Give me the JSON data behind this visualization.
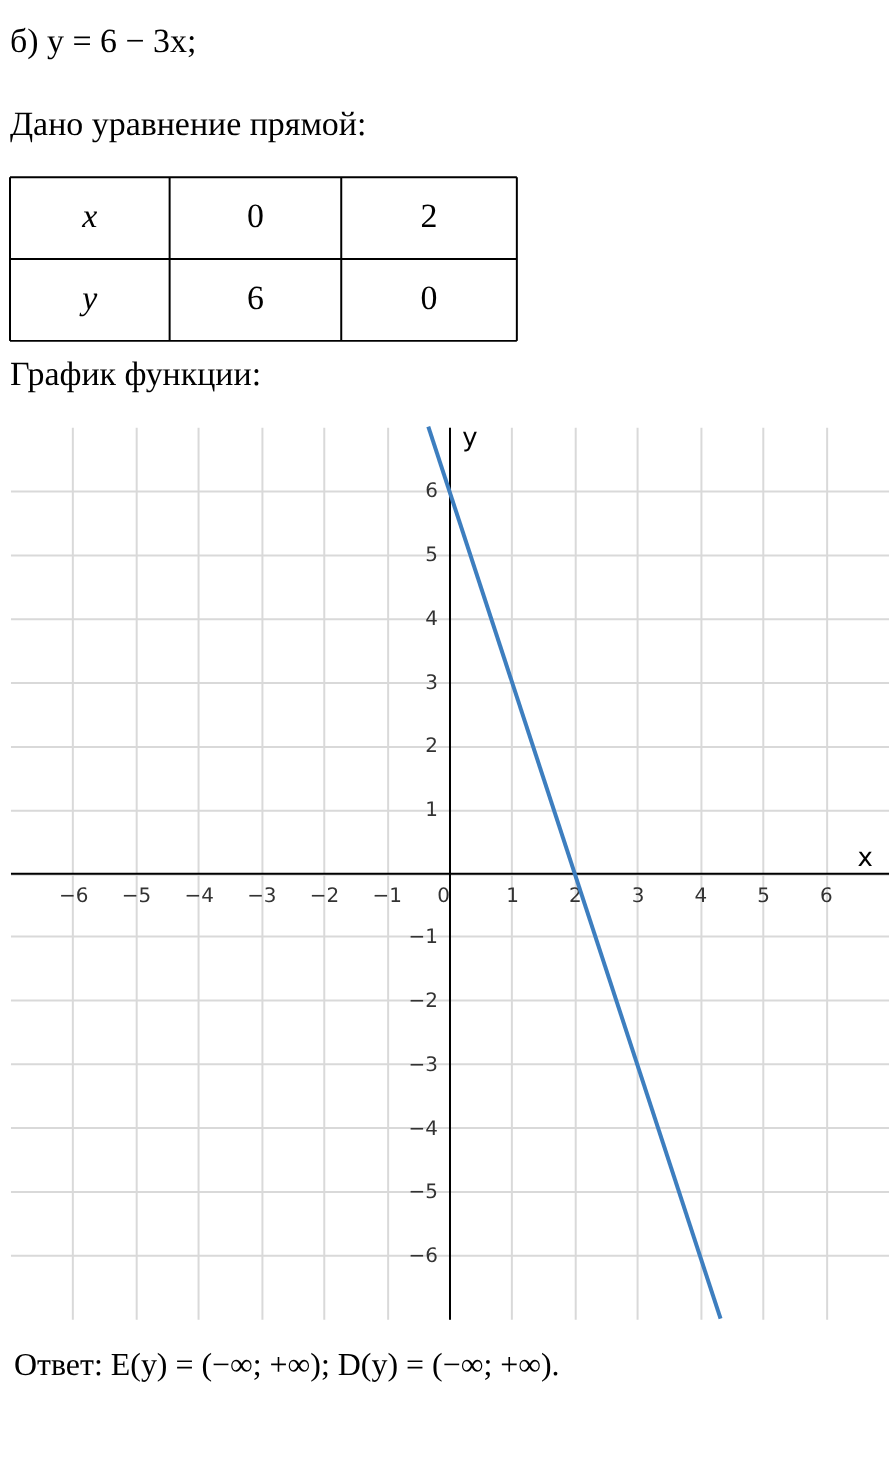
{
  "chart_data": {
    "type": "line",
    "title": "б) y = 6 − 3x;",
    "xlabel": "x",
    "ylabel": "y",
    "annotations": [
      "Дано уравнение прямой:",
      "x",
      "0",
      "2",
      "y",
      "6",
      "0",
      "График функции:",
      "Ответ: E(y) = (−∞; +∞); D(y) = (−∞; +∞)."
    ],
    "x": [
      -0.33,
      4.33
    ],
    "series": [
      {
        "color": "#3d7ebf",
        "values": [
          7,
          -7
        ]
      }
    ],
    "xlim": [
      -7,
      7
    ],
    "ylim": [
      -7,
      7
    ],
    "xticks": [
      -6,
      -5,
      -4,
      -3,
      -2,
      -1,
      0,
      1,
      2,
      3,
      4,
      5,
      6
    ],
    "yticks": [
      -6,
      -5,
      -4,
      -3,
      -2,
      -1,
      {
        "value": 0,
        "label": null
      },
      1,
      2,
      3,
      4,
      5,
      6
    ],
    "grid": true
  }
}
